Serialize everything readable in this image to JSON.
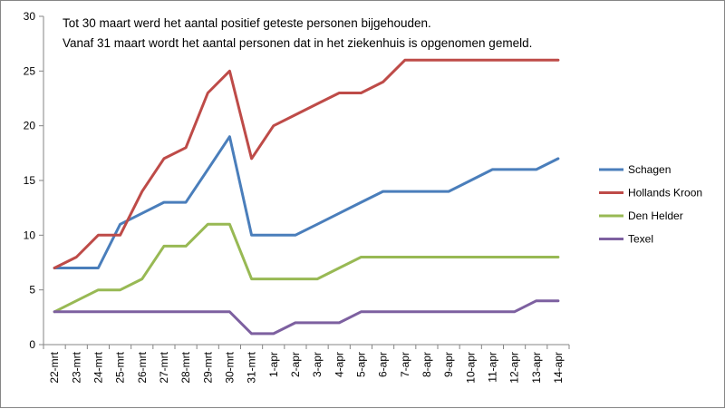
{
  "chart_data": {
    "type": "line",
    "title": "",
    "xlabel": "",
    "ylabel": "",
    "ylim": [
      0,
      30
    ],
    "yticks": [
      0,
      5,
      10,
      15,
      20,
      25,
      30
    ],
    "grid": false,
    "legend_position": "right",
    "annotations": [
      "Tot 30 maart werd het aantal positief geteste personen bijgehouden.",
      "Vanaf 31 maart wordt het aantal personen dat in het ziekenhuis is opgenomen gemeld."
    ],
    "categories": [
      "22-mrt",
      "23-mrt",
      "24-mrt",
      "25-mrt",
      "26-mrt",
      "27-mrt",
      "28-mrt",
      "29-mrt",
      "30-mrt",
      "31-mrt",
      "1-apr",
      "2-apr",
      "3-apr",
      "4-apr",
      "5-apr",
      "6-apr",
      "7-apr",
      "8-apr",
      "9-apr",
      "10-apr",
      "11-apr",
      "12-apr",
      "13-apr",
      "14-apr"
    ],
    "series": [
      {
        "name": "Schagen",
        "color": "#4a7ebb",
        "values": [
          7,
          7,
          7,
          11,
          12,
          13,
          13,
          16,
          19,
          10,
          10,
          10,
          11,
          12,
          13,
          14,
          14,
          14,
          14,
          15,
          16,
          16,
          16,
          17
        ]
      },
      {
        "name": "Hollands Kroon",
        "color": "#be4b48",
        "values": [
          7,
          8,
          10,
          10,
          14,
          17,
          18,
          23,
          25,
          17,
          20,
          21,
          22,
          23,
          23,
          24,
          26,
          26,
          26,
          26,
          26,
          26,
          26,
          26
        ]
      },
      {
        "name": "Den Helder",
        "color": "#98b954",
        "values": [
          3,
          4,
          5,
          5,
          6,
          9,
          9,
          11,
          11,
          6,
          6,
          6,
          6,
          7,
          8,
          8,
          8,
          8,
          8,
          8,
          8,
          8,
          8,
          8
        ]
      },
      {
        "name": "Texel",
        "color": "#7d60a0",
        "values": [
          3,
          3,
          3,
          3,
          3,
          3,
          3,
          3,
          3,
          1,
          1,
          2,
          2,
          2,
          3,
          3,
          3,
          3,
          3,
          3,
          3,
          3,
          4,
          4
        ]
      }
    ]
  }
}
